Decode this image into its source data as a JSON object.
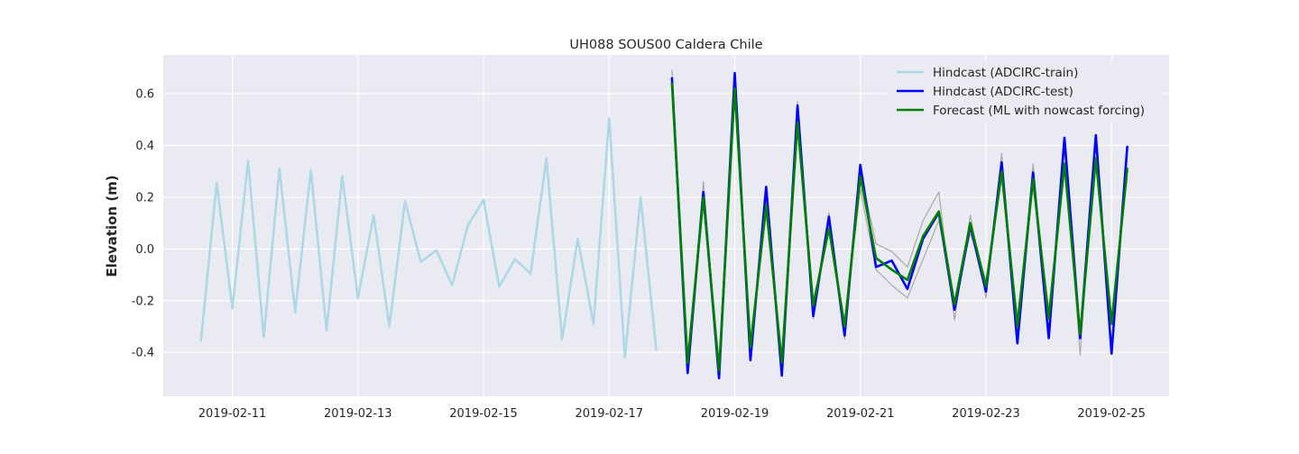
{
  "chart_data": {
    "type": "line",
    "title": "UH088 SOUS00 Caldera Chile",
    "xlabel": "",
    "ylabel": "Elevation (m)",
    "x_range": [
      "2019-02-09T21:36",
      "2019-02-25T22:00"
    ],
    "ylim": [
      -0.57,
      0.75
    ],
    "x_tick_labels": [
      "2019-02-11",
      "2019-02-13",
      "2019-02-15",
      "2019-02-17",
      "2019-02-19",
      "2019-02-21",
      "2019-02-23",
      "2019-02-25"
    ],
    "y_tick_labels": [
      "0.6",
      "0.4",
      "0.2",
      "0.0",
      "-0.2",
      "-0.4"
    ],
    "y_ticks": [
      0.6,
      0.4,
      0.2,
      0.0,
      -0.2,
      -0.4
    ],
    "grid": true,
    "legend_position": "top-right",
    "background_color": "#eaeaf2",
    "series": [
      {
        "name": "Hindcast (ADCIRC-train)",
        "color": "#add8e6",
        "x": [
          "2019-02-10T12:00",
          "2019-02-10T18:00",
          "2019-02-11T00:00",
          "2019-02-11T06:00",
          "2019-02-11T12:00",
          "2019-02-11T18:00",
          "2019-02-12T00:00",
          "2019-02-12T06:00",
          "2019-02-12T12:00",
          "2019-02-12T18:00",
          "2019-02-13T00:00",
          "2019-02-13T06:00",
          "2019-02-13T12:00",
          "2019-02-13T18:00",
          "2019-02-14T00:00",
          "2019-02-14T06:00",
          "2019-02-14T12:00",
          "2019-02-14T18:00",
          "2019-02-15T00:00",
          "2019-02-15T06:00",
          "2019-02-15T12:00",
          "2019-02-15T18:00",
          "2019-02-16T00:00",
          "2019-02-16T06:00",
          "2019-02-16T12:00",
          "2019-02-16T18:00",
          "2019-02-17T00:00",
          "2019-02-17T06:00",
          "2019-02-17T12:00",
          "2019-02-17T18:00"
        ],
        "values": [
          -0.355,
          0.255,
          -0.23,
          0.34,
          -0.34,
          0.31,
          -0.245,
          0.305,
          -0.315,
          0.28,
          -0.19,
          0.13,
          -0.3,
          0.185,
          -0.05,
          -0.005,
          -0.14,
          0.09,
          0.19,
          -0.145,
          -0.04,
          -0.095,
          0.35,
          -0.35,
          0.04,
          -0.29,
          0.505,
          -0.42,
          0.2,
          -0.39
        ]
      },
      {
        "name": "",
        "color": "#a9a9a9",
        "x": [
          "2019-02-18T00:00",
          "2019-02-18T06:00",
          "2019-02-18T12:00",
          "2019-02-18T18:00",
          "2019-02-19T00:00",
          "2019-02-19T06:00",
          "2019-02-19T12:00",
          "2019-02-19T18:00",
          "2019-02-20T00:00",
          "2019-02-20T06:00",
          "2019-02-20T12:00",
          "2019-02-20T18:00",
          "2019-02-21T00:00",
          "2019-02-21T06:00",
          "2019-02-21T12:00",
          "2019-02-21T18:00",
          "2019-02-22T00:00",
          "2019-02-22T06:00",
          "2019-02-22T12:00",
          "2019-02-22T18:00",
          "2019-02-23T00:00",
          "2019-02-23T06:00",
          "2019-02-23T12:00",
          "2019-02-23T18:00",
          "2019-02-24T00:00",
          "2019-02-24T06:00",
          "2019-02-24T12:00",
          "2019-02-24T18:00",
          "2019-02-25T00:00",
          "2019-02-25T06:00"
        ],
        "values": [
          0.69,
          -0.47,
          0.26,
          -0.49,
          0.67,
          -0.42,
          0.2,
          -0.47,
          0.57,
          -0.27,
          0.14,
          -0.35,
          0.3,
          0.02,
          -0.01,
          -0.07,
          0.11,
          0.22,
          -0.275,
          0.13,
          -0.19,
          0.37,
          -0.35,
          0.33,
          -0.32,
          0.39,
          -0.41,
          0.43,
          -0.38,
          0.36
        ]
      },
      {
        "name": "",
        "color": "#a9a9a9",
        "x": [
          "2019-02-18T00:00",
          "2019-02-18T06:00",
          "2019-02-18T12:00",
          "2019-02-18T18:00",
          "2019-02-19T00:00",
          "2019-02-19T06:00",
          "2019-02-19T12:00",
          "2019-02-19T18:00",
          "2019-02-20T00:00",
          "2019-02-20T06:00",
          "2019-02-20T12:00",
          "2019-02-20T18:00",
          "2019-02-21T00:00",
          "2019-02-21T06:00",
          "2019-02-21T12:00",
          "2019-02-21T18:00",
          "2019-02-22T00:00",
          "2019-02-22T06:00",
          "2019-02-22T12:00",
          "2019-02-22T18:00",
          "2019-02-23T00:00",
          "2019-02-23T06:00",
          "2019-02-23T12:00",
          "2019-02-23T18:00",
          "2019-02-24T00:00",
          "2019-02-24T06:00",
          "2019-02-24T12:00",
          "2019-02-24T18:00",
          "2019-02-25T00:00",
          "2019-02-25T06:00"
        ],
        "values": [
          0.62,
          -0.44,
          0.18,
          -0.45,
          0.6,
          -0.35,
          0.13,
          -0.42,
          0.47,
          -0.2,
          0.07,
          -0.28,
          0.23,
          -0.08,
          -0.14,
          -0.19,
          -0.04,
          0.11,
          -0.2,
          0.06,
          -0.12,
          0.27,
          -0.26,
          0.24,
          -0.23,
          0.3,
          -0.3,
          0.32,
          -0.26,
          0.28
        ]
      },
      {
        "name": "Hindcast (ADCIRC-test)",
        "color": "#0000ff",
        "x": [
          "2019-02-18T00:00",
          "2019-02-18T06:00",
          "2019-02-18T12:00",
          "2019-02-18T18:00",
          "2019-02-19T00:00",
          "2019-02-19T06:00",
          "2019-02-19T12:00",
          "2019-02-19T18:00",
          "2019-02-20T00:00",
          "2019-02-20T06:00",
          "2019-02-20T12:00",
          "2019-02-20T18:00",
          "2019-02-21T00:00",
          "2019-02-21T06:00",
          "2019-02-21T12:00",
          "2019-02-21T18:00",
          "2019-02-22T00:00",
          "2019-02-22T06:00",
          "2019-02-22T12:00",
          "2019-02-22T18:00",
          "2019-02-23T00:00",
          "2019-02-23T06:00",
          "2019-02-23T12:00",
          "2019-02-23T18:00",
          "2019-02-24T00:00",
          "2019-02-24T06:00",
          "2019-02-24T12:00",
          "2019-02-24T18:00",
          "2019-02-25T00:00",
          "2019-02-25T06:00"
        ],
        "values": [
          0.66,
          -0.48,
          0.22,
          -0.5,
          0.68,
          -0.43,
          0.24,
          -0.49,
          0.555,
          -0.26,
          0.125,
          -0.335,
          0.325,
          -0.07,
          -0.045,
          -0.155,
          0.04,
          0.14,
          -0.235,
          0.09,
          -0.165,
          0.335,
          -0.365,
          0.295,
          -0.345,
          0.43,
          -0.345,
          0.44,
          -0.405,
          0.395
        ]
      },
      {
        "name": "Forecast (ML with nowcast forcing)",
        "color": "#008000",
        "x": [
          "2019-02-18T00:00",
          "2019-02-18T06:00",
          "2019-02-18T12:00",
          "2019-02-18T18:00",
          "2019-02-19T00:00",
          "2019-02-19T06:00",
          "2019-02-19T12:00",
          "2019-02-19T18:00",
          "2019-02-20T00:00",
          "2019-02-20T06:00",
          "2019-02-20T12:00",
          "2019-02-20T18:00",
          "2019-02-21T00:00",
          "2019-02-21T06:00",
          "2019-02-21T12:00",
          "2019-02-21T18:00",
          "2019-02-22T00:00",
          "2019-02-22T06:00",
          "2019-02-22T12:00",
          "2019-02-22T18:00",
          "2019-02-23T00:00",
          "2019-02-23T06:00",
          "2019-02-23T12:00",
          "2019-02-23T18:00",
          "2019-02-24T00:00",
          "2019-02-24T06:00",
          "2019-02-24T12:00",
          "2019-02-24T18:00",
          "2019-02-25T00:00",
          "2019-02-25T06:00"
        ],
        "values": [
          0.64,
          -0.44,
          0.2,
          -0.47,
          0.62,
          -0.38,
          0.17,
          -0.44,
          0.49,
          -0.22,
          0.08,
          -0.3,
          0.28,
          -0.035,
          -0.08,
          -0.12,
          0.05,
          0.145,
          -0.215,
          0.1,
          -0.145,
          0.3,
          -0.3,
          0.27,
          -0.27,
          0.33,
          -0.33,
          0.35,
          -0.29,
          0.31
        ]
      }
    ]
  }
}
